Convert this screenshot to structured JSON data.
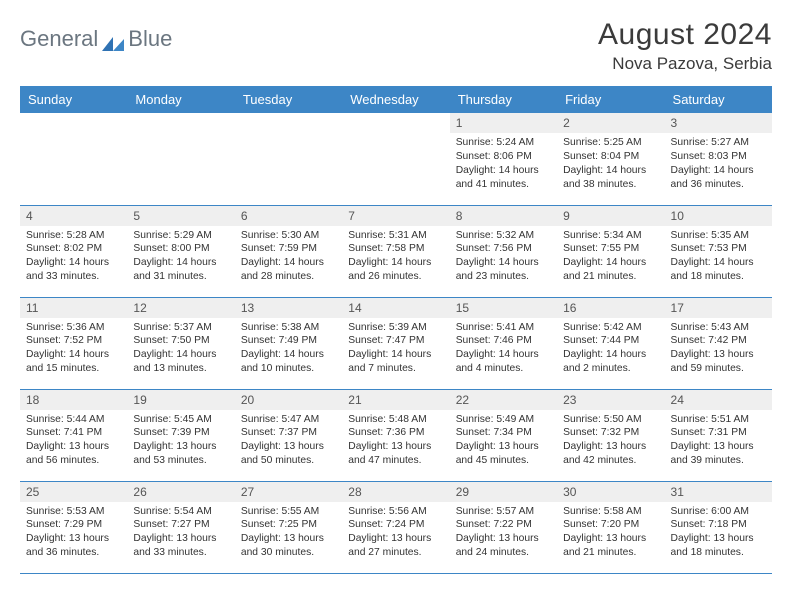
{
  "brand": {
    "name1": "General",
    "name2": "Blue"
  },
  "title": "August 2024",
  "location": "Nova Pazova, Serbia",
  "colors": {
    "header_bg": "#3d86c6",
    "header_text": "#ffffff",
    "daynum_bg": "#efefef",
    "rule": "#3d86c6",
    "text": "#333333",
    "title_color": "#3b3b3b",
    "logo_text": "#6b7680",
    "logo_shape": "#2f72b3"
  },
  "days_of_week": [
    "Sunday",
    "Monday",
    "Tuesday",
    "Wednesday",
    "Thursday",
    "Friday",
    "Saturday"
  ],
  "weeks": [
    [
      null,
      null,
      null,
      null,
      {
        "n": "1",
        "sunrise": "5:24 AM",
        "sunset": "8:06 PM",
        "daylight": "14 hours and 41 minutes."
      },
      {
        "n": "2",
        "sunrise": "5:25 AM",
        "sunset": "8:04 PM",
        "daylight": "14 hours and 38 minutes."
      },
      {
        "n": "3",
        "sunrise": "5:27 AM",
        "sunset": "8:03 PM",
        "daylight": "14 hours and 36 minutes."
      }
    ],
    [
      {
        "n": "4",
        "sunrise": "5:28 AM",
        "sunset": "8:02 PM",
        "daylight": "14 hours and 33 minutes."
      },
      {
        "n": "5",
        "sunrise": "5:29 AM",
        "sunset": "8:00 PM",
        "daylight": "14 hours and 31 minutes."
      },
      {
        "n": "6",
        "sunrise": "5:30 AM",
        "sunset": "7:59 PM",
        "daylight": "14 hours and 28 minutes."
      },
      {
        "n": "7",
        "sunrise": "5:31 AM",
        "sunset": "7:58 PM",
        "daylight": "14 hours and 26 minutes."
      },
      {
        "n": "8",
        "sunrise": "5:32 AM",
        "sunset": "7:56 PM",
        "daylight": "14 hours and 23 minutes."
      },
      {
        "n": "9",
        "sunrise": "5:34 AM",
        "sunset": "7:55 PM",
        "daylight": "14 hours and 21 minutes."
      },
      {
        "n": "10",
        "sunrise": "5:35 AM",
        "sunset": "7:53 PM",
        "daylight": "14 hours and 18 minutes."
      }
    ],
    [
      {
        "n": "11",
        "sunrise": "5:36 AM",
        "sunset": "7:52 PM",
        "daylight": "14 hours and 15 minutes."
      },
      {
        "n": "12",
        "sunrise": "5:37 AM",
        "sunset": "7:50 PM",
        "daylight": "14 hours and 13 minutes."
      },
      {
        "n": "13",
        "sunrise": "5:38 AM",
        "sunset": "7:49 PM",
        "daylight": "14 hours and 10 minutes."
      },
      {
        "n": "14",
        "sunrise": "5:39 AM",
        "sunset": "7:47 PM",
        "daylight": "14 hours and 7 minutes."
      },
      {
        "n": "15",
        "sunrise": "5:41 AM",
        "sunset": "7:46 PM",
        "daylight": "14 hours and 4 minutes."
      },
      {
        "n": "16",
        "sunrise": "5:42 AM",
        "sunset": "7:44 PM",
        "daylight": "14 hours and 2 minutes."
      },
      {
        "n": "17",
        "sunrise": "5:43 AM",
        "sunset": "7:42 PM",
        "daylight": "13 hours and 59 minutes."
      }
    ],
    [
      {
        "n": "18",
        "sunrise": "5:44 AM",
        "sunset": "7:41 PM",
        "daylight": "13 hours and 56 minutes."
      },
      {
        "n": "19",
        "sunrise": "5:45 AM",
        "sunset": "7:39 PM",
        "daylight": "13 hours and 53 minutes."
      },
      {
        "n": "20",
        "sunrise": "5:47 AM",
        "sunset": "7:37 PM",
        "daylight": "13 hours and 50 minutes."
      },
      {
        "n": "21",
        "sunrise": "5:48 AM",
        "sunset": "7:36 PM",
        "daylight": "13 hours and 47 minutes."
      },
      {
        "n": "22",
        "sunrise": "5:49 AM",
        "sunset": "7:34 PM",
        "daylight": "13 hours and 45 minutes."
      },
      {
        "n": "23",
        "sunrise": "5:50 AM",
        "sunset": "7:32 PM",
        "daylight": "13 hours and 42 minutes."
      },
      {
        "n": "24",
        "sunrise": "5:51 AM",
        "sunset": "7:31 PM",
        "daylight": "13 hours and 39 minutes."
      }
    ],
    [
      {
        "n": "25",
        "sunrise": "5:53 AM",
        "sunset": "7:29 PM",
        "daylight": "13 hours and 36 minutes."
      },
      {
        "n": "26",
        "sunrise": "5:54 AM",
        "sunset": "7:27 PM",
        "daylight": "13 hours and 33 minutes."
      },
      {
        "n": "27",
        "sunrise": "5:55 AM",
        "sunset": "7:25 PM",
        "daylight": "13 hours and 30 minutes."
      },
      {
        "n": "28",
        "sunrise": "5:56 AM",
        "sunset": "7:24 PM",
        "daylight": "13 hours and 27 minutes."
      },
      {
        "n": "29",
        "sunrise": "5:57 AM",
        "sunset": "7:22 PM",
        "daylight": "13 hours and 24 minutes."
      },
      {
        "n": "30",
        "sunrise": "5:58 AM",
        "sunset": "7:20 PM",
        "daylight": "13 hours and 21 minutes."
      },
      {
        "n": "31",
        "sunrise": "6:00 AM",
        "sunset": "7:18 PM",
        "daylight": "13 hours and 18 minutes."
      }
    ]
  ],
  "labels": {
    "sunrise": "Sunrise:",
    "sunset": "Sunset:",
    "daylight": "Daylight:"
  }
}
